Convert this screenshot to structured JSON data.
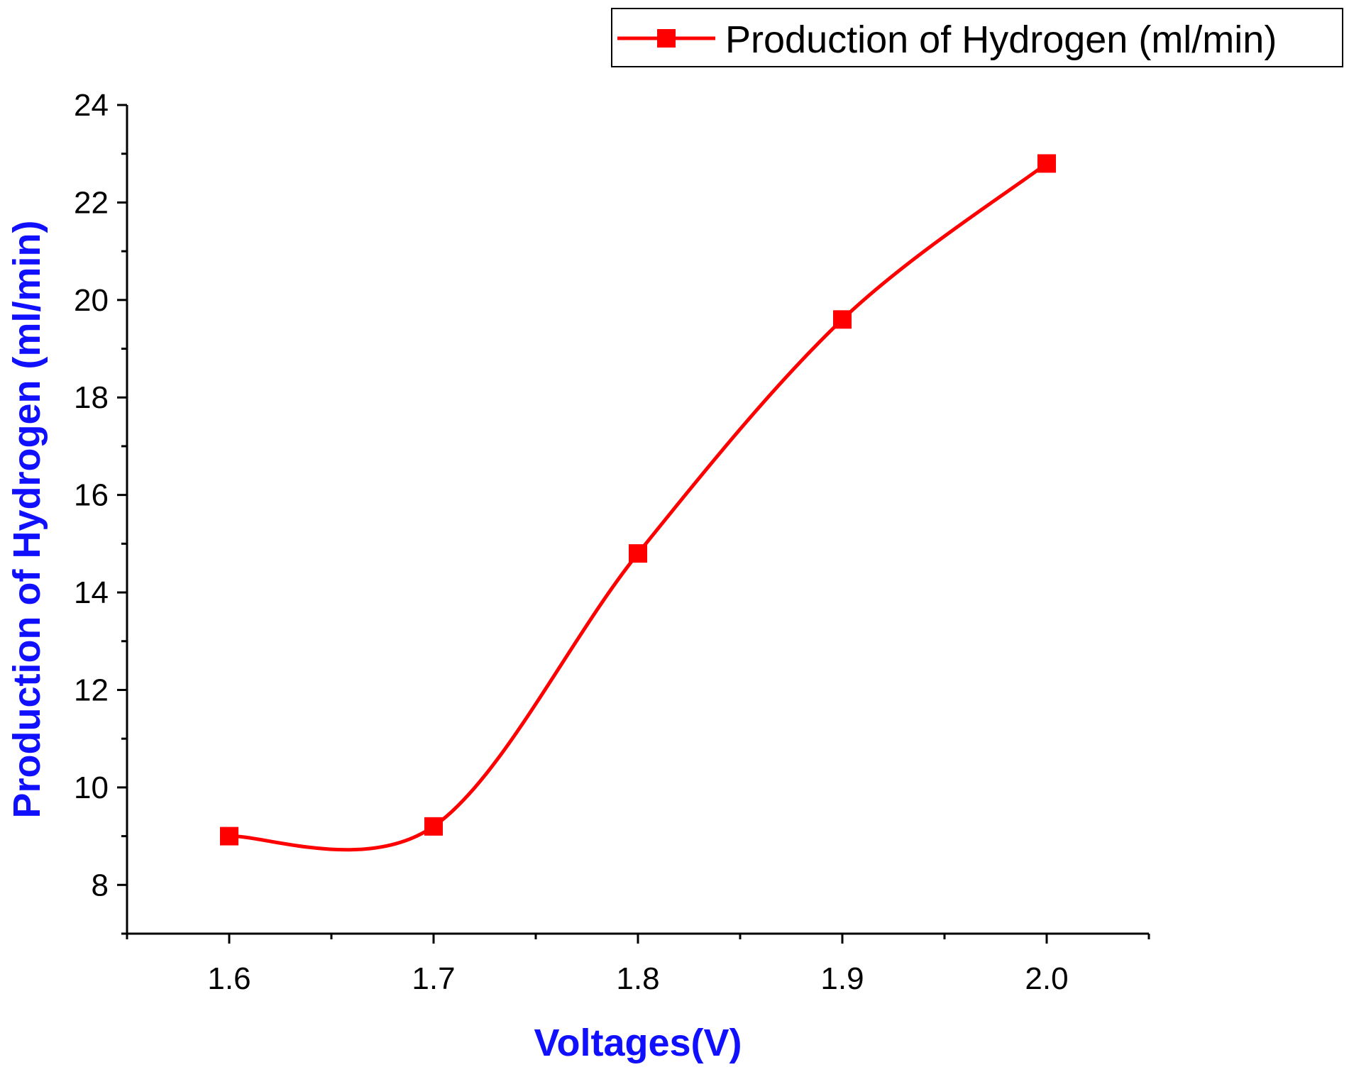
{
  "chart_data": {
    "type": "line",
    "x": [
      1.6,
      1.7,
      1.8,
      1.9,
      2.0
    ],
    "series": [
      {
        "name": "Production of Hydrogen (ml/min)",
        "values": [
          9.0,
          9.2,
          14.8,
          19.6,
          22.8
        ],
        "color": "#ff0000",
        "marker": "square",
        "smooth": true
      }
    ],
    "xlabel": "Voltages(V)",
    "ylabel": "Production of Hydrogen (ml/min)",
    "xlim": [
      1.55,
      2.05
    ],
    "ylim": [
      7,
      24
    ],
    "xticks": [
      1.6,
      1.7,
      1.8,
      1.9,
      2.0
    ],
    "xtick_labels": [
      "1.6",
      "1.7",
      "1.8",
      "1.9",
      "2.0"
    ],
    "yticks": [
      8,
      10,
      12,
      14,
      16,
      18,
      20,
      22,
      24
    ],
    "ytick_labels": [
      "8",
      "10",
      "12",
      "14",
      "16",
      "18",
      "20",
      "22",
      "24"
    ],
    "axis_title_color": "#1010ff",
    "grid": false,
    "legend": "top-right"
  }
}
